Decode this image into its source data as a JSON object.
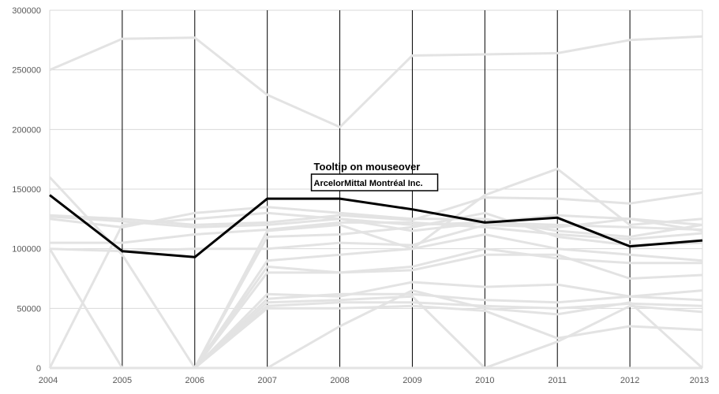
{
  "chart_data": {
    "type": "line",
    "x": [
      "2004",
      "2005",
      "2006",
      "2007",
      "2008",
      "2009",
      "2010",
      "2011",
      "2012",
      "2013"
    ],
    "ylim": [
      0,
      300000
    ],
    "yticks": [
      0,
      50000,
      100000,
      150000,
      200000,
      250000,
      300000
    ],
    "ytick_labels": [
      "0",
      "50000",
      "100000",
      "150000",
      "200000",
      "250000",
      "300000"
    ],
    "grid": true,
    "background_series_color": "#e3e3e3",
    "highlight_color": "#000000",
    "highlighted_series": {
      "name": "ArcelorMittal Montréal Inc.",
      "values": [
        145000,
        98000,
        93000,
        142000,
        142000,
        133000,
        122000,
        126000,
        102000,
        107000
      ]
    },
    "series": [
      {
        "values": [
          250000,
          276000,
          277000,
          229000,
          202000,
          262000,
          263000,
          264000,
          275000,
          278000
        ]
      },
      {
        "values": [
          160000,
          95000,
          0,
          115000,
          120000,
          100000,
          145000,
          167000,
          120000,
          125000
        ]
      },
      {
        "values": [
          128000,
          125000,
          120000,
          122000,
          128000,
          124000,
          143000,
          142000,
          138000,
          147000
        ]
      },
      {
        "values": [
          127000,
          123000,
          118000,
          120000,
          125000,
          120000,
          122000,
          120000,
          118000,
          116000
        ]
      },
      {
        "values": [
          125000,
          118000,
          130000,
          135000,
          130000,
          125000,
          125000,
          115000,
          110000,
          120000
        ]
      },
      {
        "values": [
          105000,
          105000,
          112000,
          116000,
          122000,
          122000,
          118000,
          112000,
          108000,
          113000
        ]
      },
      {
        "values": [
          100000,
          98000,
          100000,
          100000,
          105000,
          103000,
          120000,
          118000,
          125000,
          120000
        ]
      },
      {
        "values": [
          100000,
          0,
          0,
          110000,
          112000,
          118000,
          130000,
          110000,
          103000,
          105000
        ]
      },
      {
        "values": [
          0,
          120000,
          125000,
          130000,
          125000,
          115000,
          122000,
          128000,
          125000,
          115000
        ]
      },
      {
        "values": [
          0,
          0,
          0,
          90000,
          95000,
          100000,
          112000,
          100000,
          95000,
          90000
        ]
      },
      {
        "values": [
          0,
          0,
          0,
          85000,
          80000,
          85000,
          100000,
          92000,
          88000,
          88000
        ]
      },
      {
        "values": [
          0,
          0,
          0,
          80000,
          80000,
          82000,
          95000,
          95000,
          75000,
          78000
        ]
      },
      {
        "values": [
          0,
          0,
          0,
          62000,
          60000,
          72000,
          68000,
          70000,
          60000,
          65000
        ]
      },
      {
        "values": [
          0,
          0,
          0,
          58000,
          62000,
          62000,
          57000,
          55000,
          60000,
          57000
        ]
      },
      {
        "values": [
          0,
          0,
          0,
          52000,
          55000,
          55000,
          52000,
          50000,
          54000,
          52000
        ]
      },
      {
        "values": [
          0,
          0,
          0,
          0,
          35000,
          65000,
          50000,
          45000,
          55000,
          0
        ]
      },
      {
        "values": [
          0,
          0,
          0,
          50000,
          50000,
          52000,
          48000,
          25000,
          35000,
          32000
        ]
      },
      {
        "values": [
          0,
          0,
          0,
          55000,
          57000,
          60000,
          0,
          0,
          0,
          0
        ]
      },
      {
        "values": [
          0,
          0,
          0,
          0,
          0,
          0,
          0,
          22000,
          52000,
          47000
        ]
      }
    ],
    "annotation": {
      "title": "Tooltip on mouseover",
      "label": "ArcelorMittal Montréal Inc.",
      "x": "2008"
    }
  }
}
